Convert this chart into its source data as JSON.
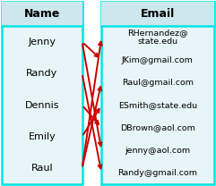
{
  "fig_width": 2.41,
  "fig_height": 2.08,
  "dpi": 100,
  "bg_color": "#ffffff",
  "left_box_color": "#e8f5f8",
  "right_box_color": "#e8f5f8",
  "border_color": "#00e5e5",
  "header_bg": "#cce8ee",
  "arrow_color": "#cc0000",
  "names": [
    "Jenny",
    "Randy",
    "Dennis",
    "Emily",
    "Raul"
  ],
  "emails": [
    "RHernandez@\nstate.edu",
    "JKim@gmail.com",
    "Raul@gmail.com",
    "ESmith@state.edu",
    "DBrown@aol.com",
    "jenny@aol.com",
    "Randy@gmail.com"
  ],
  "name_header": "Name",
  "email_header": "Email",
  "arrows": [
    [
      0,
      1
    ],
    [
      0,
      5
    ],
    [
      1,
      6
    ],
    [
      2,
      4
    ],
    [
      3,
      3
    ],
    [
      4,
      0
    ],
    [
      4,
      2
    ]
  ]
}
